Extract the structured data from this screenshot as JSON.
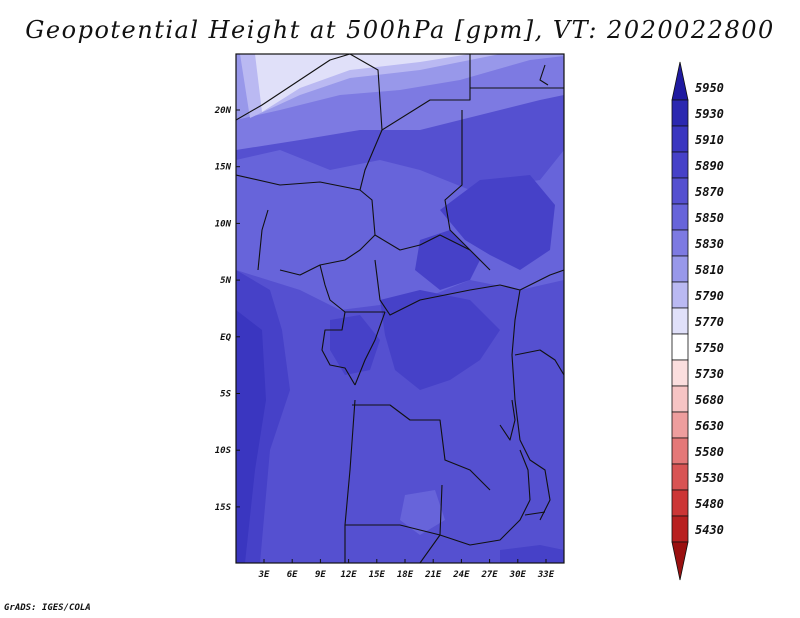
{
  "title": "Geopotential Height at 500hPa [gpm], VT: 2020022800",
  "footer": "GrADS: IGES/COLA",
  "map": {
    "lat_ticks": [
      "20N",
      "15N",
      "10N",
      "5N",
      "EQ",
      "5S",
      "10S",
      "15S"
    ],
    "lon_ticks": [
      "3E",
      "6E",
      "9E",
      "12E",
      "15E",
      "18E",
      "21E",
      "24E",
      "27E",
      "30E",
      "33E"
    ]
  },
  "colorbar": {
    "levels": [
      "5950",
      "5930",
      "5910",
      "5890",
      "5870",
      "5850",
      "5830",
      "5810",
      "5790",
      "5770",
      "5750",
      "5730",
      "5680",
      "5630",
      "5580",
      "5530",
      "5480",
      "5430"
    ],
    "colors": [
      "#1f1aa0",
      "#2b28b0",
      "#3a36c0",
      "#4641c8",
      "#5550d0",
      "#6764da",
      "#7d7ae2",
      "#9898ea",
      "#bab9f2",
      "#e0e0f9",
      "#ffffff",
      "#fbdede",
      "#f6c4c4",
      "#ee9e9e",
      "#e47878",
      "#d85454",
      "#cc3636",
      "#b82020",
      "#9a1010"
    ]
  }
}
